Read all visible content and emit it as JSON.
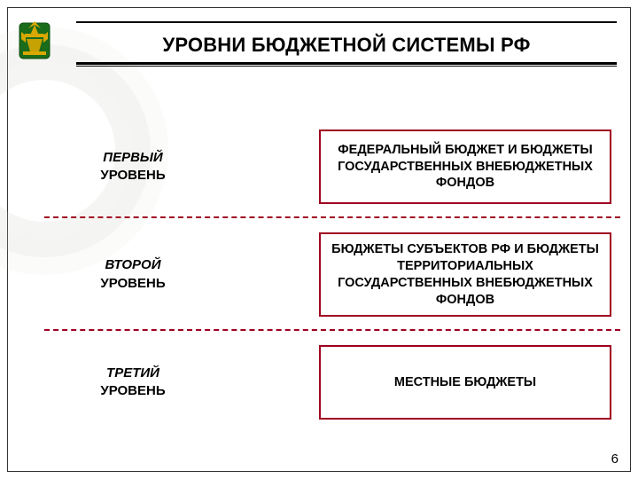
{
  "colors": {
    "box_border": "#a00020",
    "dash_border": "#a00020",
    "emblem_shield": "#1a6b1a",
    "emblem_gold": "#d9a800"
  },
  "title": "УРОВНИ БЮДЖЕТНОЙ СИСТЕМЫ РФ",
  "levels": [
    {
      "label_italic": "ПЕРВЫЙ",
      "label": "УРОВЕНЬ",
      "box": "ФЕДЕРАЛЬНЫЙ БЮДЖЕТ И БЮДЖЕТЫ ГОСУДАРСТВЕННЫХ ВНЕБЮДЖЕТНЫХ ФОНДОВ"
    },
    {
      "label_italic": "ВТОРОЙ",
      "label": "УРОВЕНЬ",
      "box": "БЮДЖЕТЫ СУБЪЕКТОВ РФ И БЮДЖЕТЫ ТЕРРИТОРИАЛЬНЫХ ГОСУДАРСТВЕННЫХ ВНЕБЮДЖЕТНЫХ ФОНДОВ"
    },
    {
      "label_italic": "ТРЕТИЙ",
      "label": "УРОВЕНЬ",
      "box": "МЕСТНЫЕ БЮДЖЕТЫ"
    }
  ],
  "page_number": "6"
}
